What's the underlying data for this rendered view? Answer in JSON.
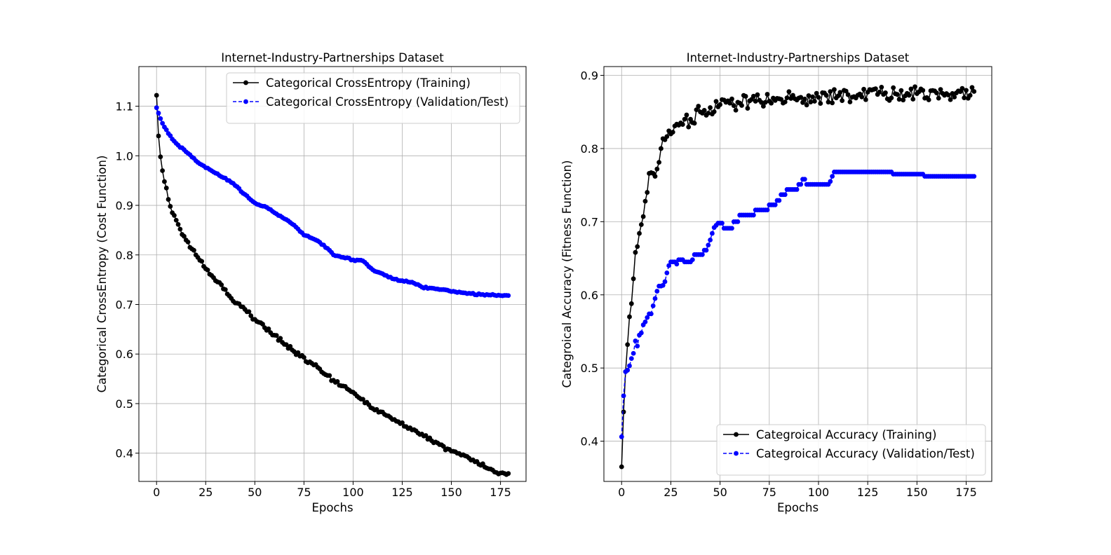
{
  "chart_data": [
    {
      "type": "line",
      "title": "Internet-Industry-Partnerships Dataset",
      "xlabel": "Epochs",
      "ylabel": "Categorical CrossEntropy (Cost Function)",
      "xlim": [
        -9,
        188
      ],
      "ylim": [
        0.343,
        1.18
      ],
      "xticks": [
        0,
        25,
        50,
        75,
        100,
        125,
        150,
        175
      ],
      "yticks": [
        0.4,
        0.5,
        0.6,
        0.7,
        0.8,
        0.9,
        1.0,
        1.1
      ],
      "ytick_labels": [
        "0.4",
        "0.5",
        "0.6",
        "0.7",
        "0.8",
        "0.9",
        "1.0",
        "1.1"
      ],
      "grid": true,
      "legend_position": "upper-right",
      "epochs": 180,
      "series": [
        {
          "name": "Categorical CrossEntropy (Training)",
          "color": "#000000",
          "line_style": "solid",
          "marker": "circle",
          "keypoints": [
            [
              0,
              1.122
            ],
            [
              1,
              1.04
            ],
            [
              2,
              0.998
            ],
            [
              3,
              0.97
            ],
            [
              4,
              0.948
            ],
            [
              5,
              0.935
            ],
            [
              6,
              0.912
            ],
            [
              7,
              0.898
            ],
            [
              8,
              0.885
            ],
            [
              10,
              0.87
            ],
            [
              12,
              0.852
            ],
            [
              15,
              0.83
            ],
            [
              18,
              0.812
            ],
            [
              20,
              0.8
            ],
            [
              25,
              0.772
            ],
            [
              30,
              0.748
            ],
            [
              35,
              0.73
            ],
            [
              40,
              0.703
            ],
            [
              45,
              0.69
            ],
            [
              50,
              0.67
            ],
            [
              60,
              0.638
            ],
            [
              70,
              0.605
            ],
            [
              80,
              0.578
            ],
            [
              90,
              0.547
            ],
            [
              100,
              0.523
            ],
            [
              110,
              0.49
            ],
            [
              120,
              0.468
            ],
            [
              130,
              0.447
            ],
            [
              140,
              0.425
            ],
            [
              150,
              0.404
            ],
            [
              160,
              0.386
            ],
            [
              170,
              0.368
            ],
            [
              175,
              0.36
            ],
            [
              179,
              0.359
            ]
          ],
          "noise_amplitude": 0.004
        },
        {
          "name": "Categorical CrossEntropy (Validation/Test)",
          "color": "#0000ff",
          "line_style": "dashed",
          "marker": "circle",
          "keypoints": [
            [
              0,
              1.097
            ],
            [
              2,
              1.075
            ],
            [
              4,
              1.058
            ],
            [
              6,
              1.045
            ],
            [
              10,
              1.025
            ],
            [
              15,
              1.008
            ],
            [
              20,
              0.99
            ],
            [
              25,
              0.976
            ],
            [
              30,
              0.965
            ],
            [
              35,
              0.955
            ],
            [
              40,
              0.94
            ],
            [
              45,
              0.922
            ],
            [
              50,
              0.905
            ],
            [
              55,
              0.898
            ],
            [
              60,
              0.885
            ],
            [
              65,
              0.873
            ],
            [
              70,
              0.86
            ],
            [
              75,
              0.84
            ],
            [
              80,
              0.832
            ],
            [
              85,
              0.82
            ],
            [
              90,
              0.8
            ],
            [
              95,
              0.795
            ],
            [
              100,
              0.79
            ],
            [
              105,
              0.788
            ],
            [
              110,
              0.77
            ],
            [
              115,
              0.762
            ],
            [
              120,
              0.752
            ],
            [
              125,
              0.748
            ],
            [
              130,
              0.745
            ],
            [
              135,
              0.735
            ],
            [
              140,
              0.733
            ],
            [
              145,
              0.73
            ],
            [
              150,
              0.726
            ],
            [
              155,
              0.724
            ],
            [
              160,
              0.722
            ],
            [
              165,
              0.72
            ],
            [
              170,
              0.719
            ],
            [
              175,
              0.718
            ],
            [
              179,
              0.718
            ]
          ],
          "noise_amplitude": 0.0015
        }
      ]
    },
    {
      "type": "line",
      "title": "Internet-Industry-Partnerships Dataset",
      "xlabel": "Epochs",
      "ylabel": "Categroical Accuracy (Fitness Function)",
      "xlim": [
        -9,
        188
      ],
      "ylim": [
        0.345,
        0.912
      ],
      "xticks": [
        0,
        25,
        50,
        75,
        100,
        125,
        150,
        175
      ],
      "yticks": [
        0.4,
        0.5,
        0.6,
        0.7,
        0.8,
        0.9
      ],
      "ytick_labels": [
        "0.4",
        "0.5",
        "0.6",
        "0.7",
        "0.8",
        "0.9"
      ],
      "grid": true,
      "legend_position": "lower-right",
      "epochs": 180,
      "series": [
        {
          "name": "Categroical Accuracy (Training)",
          "color": "#000000",
          "line_style": "solid",
          "marker": "circle",
          "keypoints": [
            [
              0,
              0.365
            ],
            [
              1,
              0.44
            ],
            [
              2,
              0.495
            ],
            [
              3,
              0.532
            ],
            [
              4,
              0.57
            ],
            [
              5,
              0.588
            ],
            [
              6,
              0.622
            ],
            [
              7,
              0.658
            ],
            [
              8,
              0.666
            ],
            [
              9,
              0.684
            ],
            [
              10,
              0.696
            ],
            [
              11,
              0.707
            ],
            [
              12,
              0.728
            ],
            [
              13,
              0.74
            ],
            [
              14,
              0.766
            ],
            [
              15,
              0.767
            ],
            [
              16,
              0.766
            ],
            [
              17,
              0.762
            ],
            [
              18,
              0.772
            ],
            [
              20,
              0.8
            ],
            [
              22,
              0.812
            ],
            [
              25,
              0.82
            ],
            [
              30,
              0.835
            ],
            [
              35,
              0.84
            ],
            [
              40,
              0.85
            ],
            [
              45,
              0.856
            ],
            [
              50,
              0.86
            ],
            [
              60,
              0.862
            ],
            [
              70,
              0.866
            ],
            [
              80,
              0.868
            ],
            [
              90,
              0.869
            ],
            [
              100,
              0.87
            ],
            [
              110,
              0.872
            ],
            [
              120,
              0.873
            ],
            [
              130,
              0.874
            ],
            [
              140,
              0.874
            ],
            [
              150,
              0.875
            ],
            [
              160,
              0.876
            ],
            [
              170,
              0.876
            ],
            [
              179,
              0.878
            ]
          ],
          "noise_amplitude": 0.01
        },
        {
          "name": "Categroical Accuracy (Validation/Test)",
          "color": "#0000ff",
          "line_style": "dashed",
          "marker": "circle",
          "steps": [
            [
              0,
              0.406
            ],
            [
              1,
              0.462
            ],
            [
              2,
              0.495
            ],
            [
              3,
              0.497
            ],
            [
              4,
              0.503
            ],
            [
              5,
              0.513
            ],
            [
              6,
              0.52
            ],
            [
              7,
              0.537
            ],
            [
              8,
              0.53
            ],
            [
              9,
              0.545
            ],
            [
              10,
              0.548
            ],
            [
              11,
              0.559
            ],
            [
              12,
              0.563
            ],
            [
              13,
              0.569
            ],
            [
              14,
              0.574
            ],
            [
              16,
              0.585
            ],
            [
              17,
              0.595
            ],
            [
              18,
              0.605
            ],
            [
              19,
              0.612
            ],
            [
              21,
              0.613
            ],
            [
              22,
              0.618
            ],
            [
              23,
              0.63
            ],
            [
              24,
              0.64
            ],
            [
              25,
              0.645
            ],
            [
              28,
              0.642
            ],
            [
              29,
              0.648
            ],
            [
              32,
              0.645
            ],
            [
              36,
              0.648
            ],
            [
              37,
              0.655
            ],
            [
              42,
              0.661
            ],
            [
              44,
              0.668
            ],
            [
              45,
              0.675
            ],
            [
              46,
              0.684
            ],
            [
              47,
              0.692
            ],
            [
              48,
              0.695
            ],
            [
              49,
              0.698
            ],
            [
              52,
              0.691
            ],
            [
              57,
              0.7
            ],
            [
              60,
              0.709
            ],
            [
              68,
              0.716
            ],
            [
              75,
              0.723
            ],
            [
              79,
              0.729
            ],
            [
              81,
              0.737
            ],
            [
              84,
              0.744
            ],
            [
              90,
              0.751
            ],
            [
              92,
              0.758
            ],
            [
              94,
              0.751
            ],
            [
              106,
              0.755
            ],
            [
              107,
              0.762
            ],
            [
              108,
              0.768
            ],
            [
              138,
              0.765
            ],
            [
              154,
              0.762
            ],
            [
              179,
              0.762
            ]
          ]
        }
      ]
    }
  ]
}
